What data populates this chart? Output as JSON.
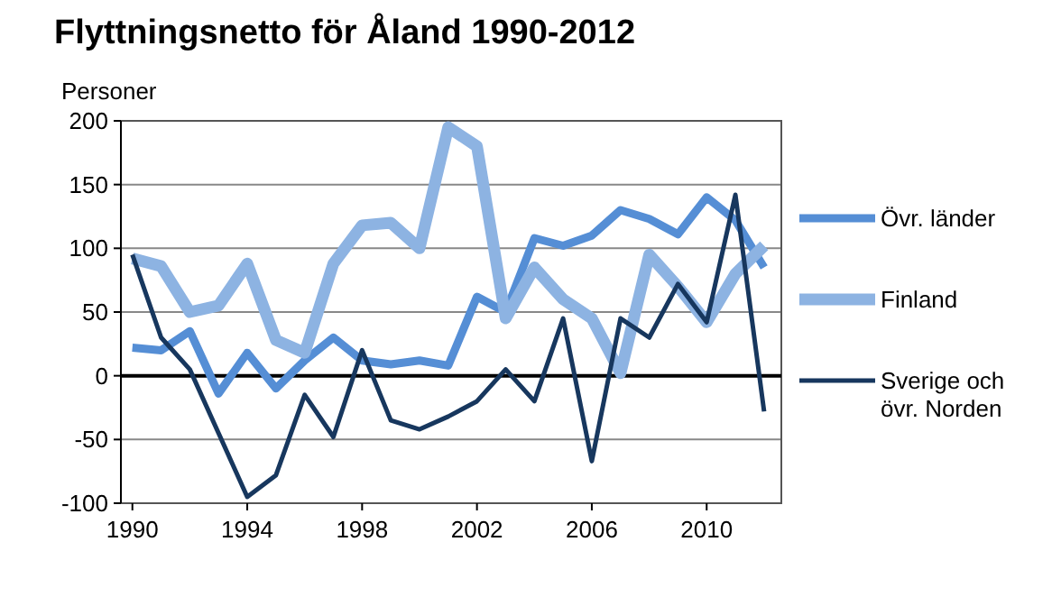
{
  "chart_data": {
    "type": "line",
    "title": "Flyttningsnetto för Åland 1990-2012",
    "ylabel": "Personer",
    "x": [
      1990,
      1991,
      1992,
      1993,
      1994,
      1995,
      1996,
      1997,
      1998,
      1999,
      2000,
      2001,
      2002,
      2003,
      2004,
      2005,
      2006,
      2007,
      2008,
      2009,
      2010,
      2011,
      2012
    ],
    "series": [
      {
        "name": "Övr. länder",
        "color": "#558ed5",
        "values": [
          22,
          20,
          35,
          -14,
          18,
          -10,
          12,
          30,
          12,
          9,
          12,
          8,
          62,
          50,
          108,
          102,
          110,
          130,
          123,
          111,
          140,
          122,
          85
        ]
      },
      {
        "name": "Finland",
        "color": "#8db3e2",
        "values": [
          92,
          86,
          50,
          55,
          88,
          28,
          18,
          88,
          118,
          120,
          100,
          195,
          180,
          45,
          85,
          60,
          45,
          2,
          95,
          70,
          42,
          80,
          102
        ]
      },
      {
        "name": "Sverige och övr. Norden",
        "color": "#17375e",
        "values": [
          95,
          30,
          5,
          -45,
          -95,
          -78,
          -15,
          -48,
          20,
          -35,
          -42,
          -32,
          -20,
          5,
          -20,
          45,
          -67,
          45,
          30,
          72,
          42,
          142,
          -28
        ]
      }
    ],
    "xlim": [
      1989.6,
      2012.6
    ],
    "xticks": [
      1990,
      1994,
      1998,
      2002,
      2006,
      2010
    ],
    "ylim": [
      -100,
      200
    ],
    "yticks": [
      -100,
      -50,
      0,
      50,
      100,
      150,
      200
    ],
    "ref_lines": [
      {
        "axis": "y",
        "value": 0,
        "color": "#000000"
      }
    ],
    "grid": "y",
    "legend": "right"
  }
}
